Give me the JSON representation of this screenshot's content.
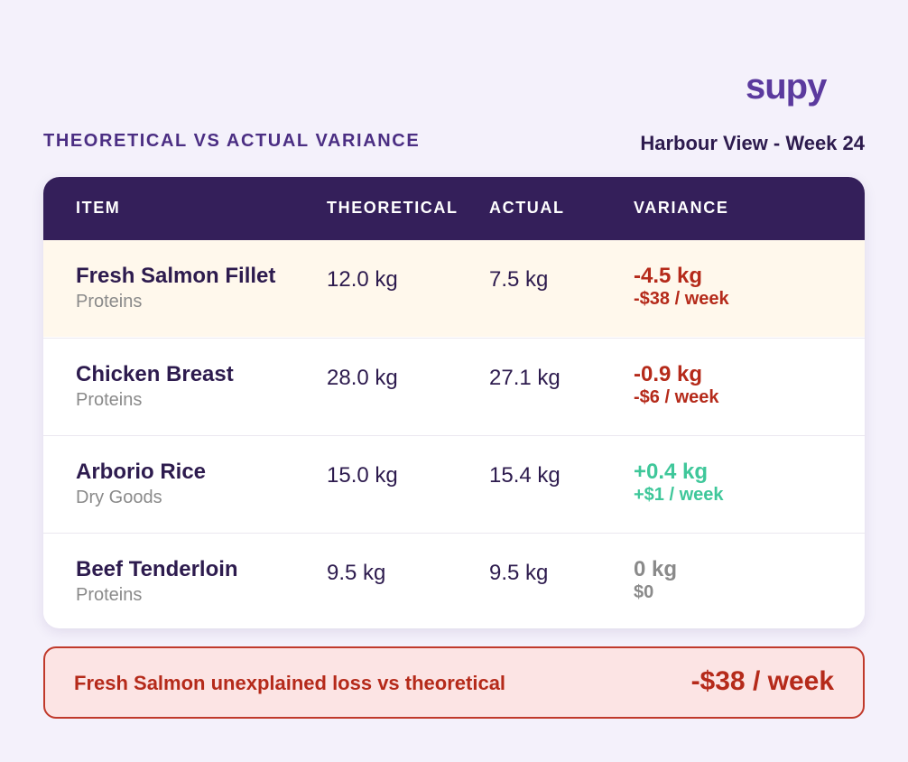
{
  "brand": "supy",
  "header": {
    "title": "THEORETICAL VS ACTUAL VARIANCE",
    "subtitle": "Harbour View - Week 24"
  },
  "table": {
    "columns": [
      "ITEM",
      "THEORETICAL",
      "ACTUAL",
      "VARIANCE"
    ],
    "rows": [
      {
        "item": "Fresh Salmon Fillet",
        "category": "Proteins",
        "theoretical": "12.0 kg",
        "actual": "7.5 kg",
        "variance": "-4.5 kg",
        "cost": "-$38 / week"
      },
      {
        "item": "Chicken Breast",
        "category": "Proteins",
        "theoretical": "28.0 kg",
        "actual": "27.1 kg",
        "variance": "-0.9 kg",
        "cost": "-$6 / week"
      },
      {
        "item": "Arborio Rice",
        "category": "Dry Goods",
        "theoretical": "15.0 kg",
        "actual": "15.4 kg",
        "variance": "+0.4 kg",
        "cost": "+$1 / week"
      },
      {
        "item": "Beef Tenderloin",
        "category": "Proteins",
        "theoretical": "9.5 kg",
        "actual": "9.5 kg",
        "variance": "0 kg",
        "cost": "$0"
      }
    ]
  },
  "alert": {
    "text": "Fresh Salmon unexplained loss vs theoretical",
    "amount": "-$38 / week"
  }
}
